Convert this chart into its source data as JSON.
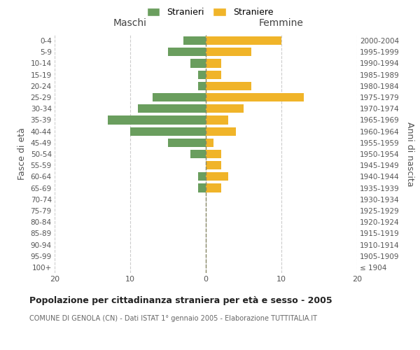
{
  "age_groups": [
    "100+",
    "95-99",
    "90-94",
    "85-89",
    "80-84",
    "75-79",
    "70-74",
    "65-69",
    "60-64",
    "55-59",
    "50-54",
    "45-49",
    "40-44",
    "35-39",
    "30-34",
    "25-29",
    "20-24",
    "15-19",
    "10-14",
    "5-9",
    "0-4"
  ],
  "birth_years": [
    "≤ 1904",
    "1905-1909",
    "1910-1914",
    "1915-1919",
    "1920-1924",
    "1925-1929",
    "1930-1934",
    "1935-1939",
    "1940-1944",
    "1945-1949",
    "1950-1954",
    "1955-1959",
    "1960-1964",
    "1965-1969",
    "1970-1974",
    "1975-1979",
    "1980-1984",
    "1985-1989",
    "1990-1994",
    "1995-1999",
    "2000-2004"
  ],
  "maschi": [
    0,
    0,
    0,
    0,
    0,
    0,
    0,
    1,
    1,
    0,
    2,
    5,
    10,
    13,
    9,
    7,
    1,
    1,
    2,
    5,
    3
  ],
  "femmine": [
    0,
    0,
    0,
    0,
    0,
    0,
    0,
    2,
    3,
    2,
    2,
    1,
    4,
    3,
    5,
    13,
    6,
    2,
    2,
    6,
    10
  ],
  "maschi_color": "#6a9e5e",
  "femmine_color": "#f0b429",
  "background_color": "#ffffff",
  "grid_color": "#cccccc",
  "title": "Popolazione per cittadinanza straniera per età e sesso - 2005",
  "subtitle": "COMUNE DI GENOLA (CN) - Dati ISTAT 1° gennaio 2005 - Elaborazione TUTTITALIA.IT",
  "xlabel_left": "Maschi",
  "xlabel_right": "Femmine",
  "ylabel_left": "Fasce di età",
  "ylabel_right": "Anni di nascita",
  "legend_stranieri": "Stranieri",
  "legend_straniere": "Straniere",
  "xlim": 20
}
